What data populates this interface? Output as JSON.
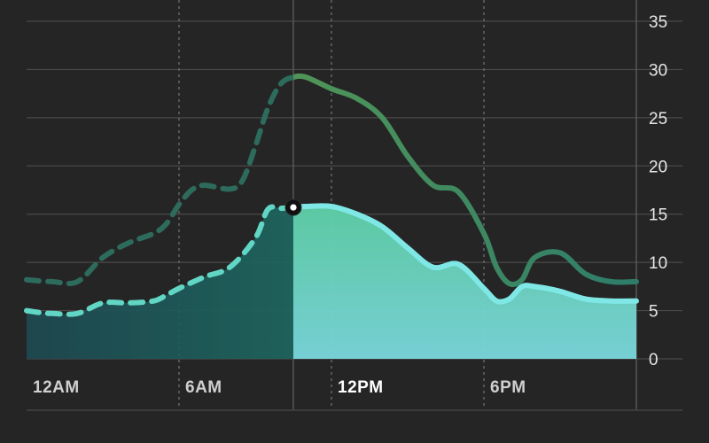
{
  "chart_data": {
    "type": "line",
    "x_ticks": [
      "12AM",
      "6AM",
      "12PM",
      "6PM"
    ],
    "y_ticks": [
      0,
      5,
      10,
      15,
      20,
      25,
      30,
      35
    ],
    "ylim": [
      0,
      35
    ],
    "xlim": [
      0,
      24
    ],
    "grid": true,
    "y_axis_side": "right",
    "current_hour": 10.5,
    "colors": {
      "background": "#252525",
      "uv_past": "#2f8f86",
      "uv_future": "#7fe8e6",
      "uv_fill_future": "#6fd6d8",
      "uv_fill_past": "#1f6f6a",
      "temp_past": "#2d6b5c",
      "temp_future_start": "#5ea84a",
      "temp_future_end": "#2e7d6a"
    },
    "series": [
      {
        "x": [
          0,
          0.5,
          1,
          2,
          3,
          4,
          5,
          5.5,
          6,
          7,
          8,
          9,
          9.5,
          10,
          10.5,
          11,
          12,
          13,
          14,
          15,
          16,
          17,
          18,
          18.5,
          19,
          19.5,
          20,
          21,
          22,
          23,
          24
        ],
        "values": [
          5,
          4.8,
          4.7,
          4.7,
          5.8,
          5.8,
          6,
          6.6,
          7.3,
          8.5,
          9.5,
          12.5,
          15.5,
          15.6,
          15.7,
          15.8,
          15.8,
          15,
          13.7,
          11.5,
          9.5,
          9.8,
          7.3,
          6,
          6.2,
          7.5,
          7.5,
          7,
          6.2,
          6,
          6
        ]
      },
      {
        "x": [
          0,
          1,
          2,
          3,
          4,
          5,
          5.5,
          6,
          6.5,
          7,
          8,
          8.5,
          9,
          9.5,
          10,
          10.5,
          11,
          12,
          13,
          14,
          15,
          16,
          17,
          18,
          18.5,
          19,
          19.5,
          20,
          21,
          22,
          23,
          24
        ],
        "values": [
          8.2,
          8,
          8,
          10.5,
          12,
          13,
          14,
          16,
          17.5,
          18,
          17.6,
          18.5,
          22,
          26,
          28.5,
          29.2,
          29.2,
          28,
          27,
          25,
          21,
          18,
          17.3,
          13,
          9.5,
          7.8,
          8.2,
          10.5,
          11,
          8.8,
          8,
          8
        ]
      }
    ]
  }
}
